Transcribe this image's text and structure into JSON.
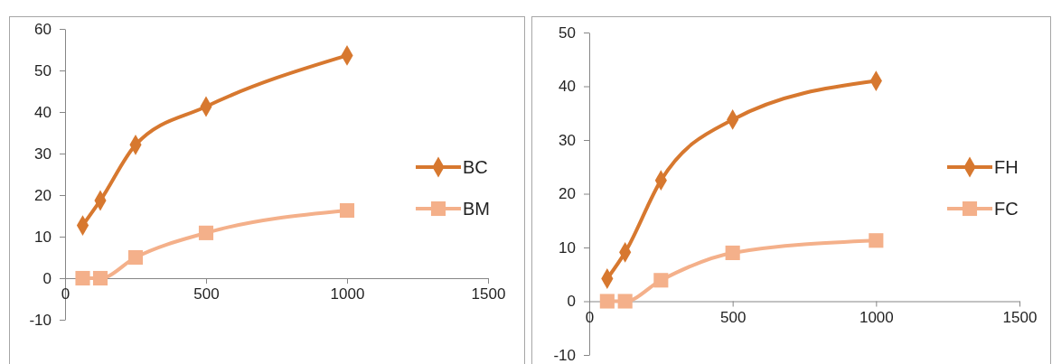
{
  "chart_data": [
    {
      "type": "line",
      "x": [
        62.5,
        125,
        250,
        500,
        1000
      ],
      "xlim": [
        0,
        1500
      ],
      "xticks": [
        0,
        500,
        1000,
        1500
      ],
      "ylim": [
        -10,
        60
      ],
      "yticks": [
        -10,
        0,
        10,
        20,
        30,
        40,
        50,
        60
      ],
      "grid": false,
      "legend": "right",
      "series": [
        {
          "name": "BC",
          "color": "#d7782f",
          "marker": "diamond",
          "values": [
            12.7,
            18.7,
            32.1,
            41.3,
            53.6
          ]
        },
        {
          "name": "BM",
          "color": "#f4b08a",
          "marker": "square",
          "values": [
            0,
            0,
            5.0,
            10.9,
            16.3
          ]
        }
      ]
    },
    {
      "type": "line",
      "x": [
        62.5,
        125,
        250,
        500,
        1000
      ],
      "xlim": [
        0,
        1500
      ],
      "xticks": [
        0,
        500,
        1000,
        1500
      ],
      "ylim": [
        -10,
        50
      ],
      "yticks": [
        -10,
        0,
        10,
        20,
        30,
        40,
        50
      ],
      "grid": false,
      "legend": "right",
      "series": [
        {
          "name": "FH",
          "color": "#d7782f",
          "marker": "diamond",
          "values": [
            4.2,
            9.1,
            22.5,
            33.8,
            41.0
          ]
        },
        {
          "name": "FC",
          "color": "#f4b08a",
          "marker": "square",
          "values": [
            0,
            0,
            3.9,
            9.0,
            11.3
          ]
        }
      ]
    }
  ]
}
